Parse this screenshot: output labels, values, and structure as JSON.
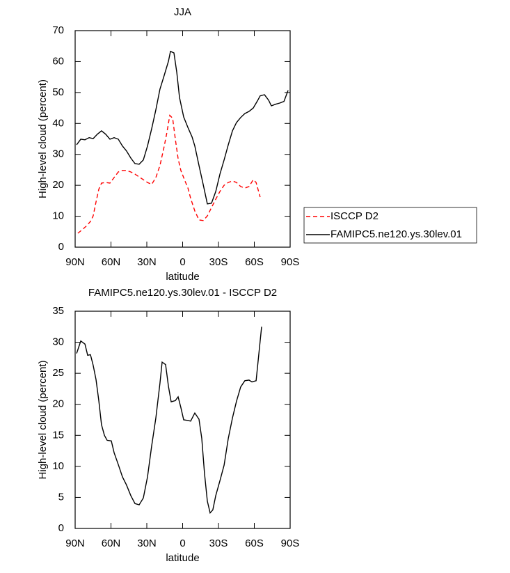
{
  "chart_data": [
    {
      "type": "line",
      "title": "JJA",
      "xlabel": "latitude",
      "ylabel": "High-level cloud (percent)",
      "xlim": [
        90,
        -90
      ],
      "ylim": [
        0,
        70
      ],
      "xticks": [
        {
          "value": 90,
          "label": "90N"
        },
        {
          "value": 60,
          "label": "60N"
        },
        {
          "value": 30,
          "label": "30N"
        },
        0,
        {
          "value": -30,
          "label": "30S"
        },
        {
          "value": -60,
          "label": "60S"
        },
        {
          "value": -90,
          "label": "90S"
        }
      ],
      "yticks": [
        0,
        10,
        20,
        30,
        40,
        50,
        60,
        70
      ],
      "legend": "right",
      "series": [
        {
          "name": "ISCCP D2",
          "color": "#ff0000",
          "dash": true,
          "x": [
            87.7,
            84.2,
            80.7,
            77.2,
            74.9,
            72.5,
            70.2,
            67.9,
            64.4,
            60.9,
            57.4,
            53.9,
            50.4,
            47.0,
            43.4,
            39.9,
            36.4,
            32.9,
            29.4,
            25.9,
            22.4,
            19.0,
            15.4,
            13.1,
            10.8,
            8.4,
            6.1,
            3.8,
            1.5,
            -2.0,
            -4.4,
            -6.7,
            -10.2,
            -13.7,
            -17.2,
            -20.7,
            -24.2,
            -27.7,
            -31.2,
            -34.7,
            -38.2,
            -41.7,
            -45.1,
            -48.6,
            -52.1,
            -55.6,
            -59.1,
            -61.5,
            -64.9
          ],
          "values": [
            4.5,
            5.6,
            6.8,
            8.3,
            10.1,
            14.6,
            18.7,
            20.7,
            20.9,
            20.7,
            22.5,
            24.3,
            24.8,
            24.8,
            24.3,
            23.6,
            22.7,
            21.8,
            20.9,
            20.3,
            22.5,
            26.4,
            32.7,
            37.2,
            42.6,
            41.7,
            34.9,
            28.6,
            24.8,
            21.4,
            19.1,
            15.8,
            11.7,
            8.8,
            8.6,
            10.1,
            12.8,
            15.5,
            18.0,
            20.0,
            20.9,
            21.4,
            20.9,
            19.6,
            19.1,
            19.6,
            21.8,
            20.9,
            16.2
          ]
        },
        {
          "name": "FAMIPC5.ne120.ys.30lev.01",
          "color": "#000000",
          "dash": false,
          "x": [
            88.8,
            85.3,
            81.8,
            78.3,
            74.9,
            71.4,
            67.9,
            64.4,
            60.9,
            57.4,
            53.9,
            50.4,
            47.0,
            43.4,
            39.9,
            36.4,
            32.9,
            29.4,
            25.9,
            22.4,
            19.0,
            15.4,
            11.9,
            10.2,
            7.3,
            4.9,
            2.6,
            -0.9,
            -4.4,
            -7.9,
            -10.2,
            -13.7,
            -17.2,
            -20.7,
            -24.2,
            -27.7,
            -31.2,
            -34.7,
            -38.2,
            -41.7,
            -45.1,
            -48.6,
            -52.1,
            -55.6,
            -59.1,
            -62.6,
            -64.9,
            -68.5,
            -72.0,
            -74.3,
            -77.8,
            -81.3,
            -84.8,
            -88.3
          ],
          "values": [
            33.1,
            34.9,
            34.7,
            35.4,
            35.1,
            36.5,
            37.6,
            36.5,
            34.9,
            35.4,
            34.9,
            32.7,
            31.1,
            28.8,
            27.0,
            26.8,
            28.2,
            32.7,
            38.3,
            44.4,
            51.1,
            55.6,
            60.1,
            63.3,
            62.8,
            56.5,
            48.4,
            42.1,
            38.7,
            35.6,
            32.7,
            26.4,
            20.3,
            14.0,
            14.2,
            18.0,
            23.6,
            28.2,
            33.1,
            37.6,
            40.3,
            41.9,
            43.2,
            43.9,
            45.0,
            47.3,
            48.9,
            49.3,
            47.5,
            45.7,
            46.2,
            46.6,
            47.1,
            50.7
          ]
        }
      ]
    },
    {
      "type": "line",
      "title": "FAMIPC5.ne120.ys.30lev.01 - ISCCP D2",
      "xlabel": "latitude",
      "ylabel": "High-level cloud (percent)",
      "xlim": [
        90,
        -90
      ],
      "ylim": [
        0,
        35
      ],
      "xticks": [
        {
          "value": 90,
          "label": "90N"
        },
        {
          "value": 60,
          "label": "60N"
        },
        {
          "value": 30,
          "label": "30N"
        },
        0,
        {
          "value": -30,
          "label": "30S"
        },
        {
          "value": -60,
          "label": "60S"
        },
        {
          "value": -90,
          "label": "90S"
        }
      ],
      "yticks": [
        0,
        5,
        10,
        15,
        20,
        25,
        30,
        35
      ],
      "series": [
        {
          "color": "#000000",
          "dash": false,
          "x": [
            88.8,
            85.3,
            81.8,
            79.5,
            77.2,
            74.9,
            72.5,
            70.2,
            67.9,
            65.5,
            63.2,
            59.7,
            57.4,
            53.9,
            50.4,
            47.0,
            43.4,
            39.9,
            36.4,
            32.9,
            29.4,
            25.9,
            22.4,
            19.0,
            17.2,
            14.3,
            11.9,
            9.6,
            6.1,
            3.8,
            1.5,
            -0.9,
            -4.4,
            -6.7,
            -10.2,
            -13.7,
            -16.0,
            -18.3,
            -20.7,
            -23.0,
            -25.3,
            -27.7,
            -31.2,
            -34.7,
            -38.2,
            -41.7,
            -45.1,
            -48.6,
            -52.1,
            -55.6,
            -58.0,
            -61.5,
            -66.1
          ],
          "values": [
            28.2,
            30.2,
            29.7,
            27.9,
            28.0,
            26.3,
            24.0,
            20.6,
            16.7,
            15.0,
            14.2,
            14.1,
            12.2,
            10.3,
            8.3,
            7.0,
            5.3,
            4.0,
            3.8,
            4.9,
            8.3,
            13.3,
            17.8,
            23.4,
            26.8,
            26.4,
            22.9,
            20.4,
            20.6,
            21.2,
            19.5,
            17.5,
            17.4,
            17.3,
            18.6,
            17.6,
            14.5,
            8.9,
            4.4,
            2.5,
            3.0,
            5.3,
            7.7,
            10.2,
            14.5,
            17.8,
            20.5,
            22.8,
            23.8,
            23.9,
            23.6,
            23.8,
            32.5
          ]
        }
      ]
    }
  ]
}
